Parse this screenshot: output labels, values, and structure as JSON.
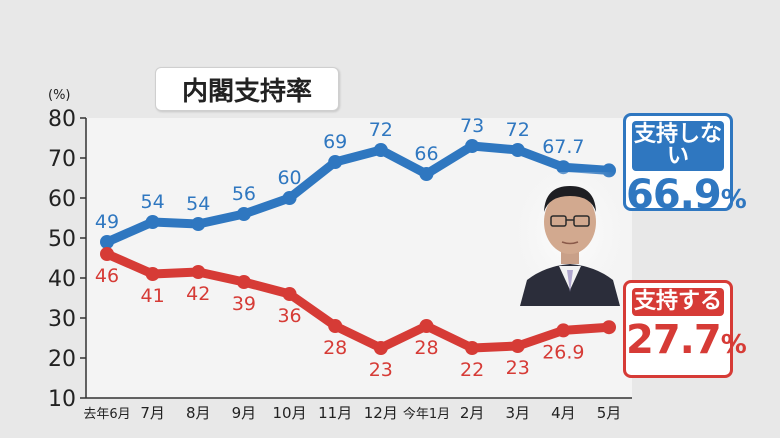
{
  "title": "内閣支持率",
  "unit_label": "(%)",
  "callouts": {
    "disapprove": {
      "label": "支持しない",
      "value": "66.9",
      "unit": "%"
    },
    "approve": {
      "label": "支持する",
      "value": "27.7",
      "unit": "%"
    }
  },
  "colors": {
    "disapprove": "#2f77c0",
    "approve": "#d63b36"
  },
  "chart_data": {
    "type": "line",
    "title": "内閣支持率",
    "xlabel": "",
    "ylabel": "(%)",
    "ylim": [
      10,
      80
    ],
    "yticks": [
      10,
      20,
      30,
      40,
      50,
      60,
      70,
      80
    ],
    "grid": false,
    "categories": [
      "去年6月",
      "7月",
      "8月",
      "9月",
      "10月",
      "11月",
      "12月",
      "今年1月",
      "2月",
      "3月",
      "4月",
      "5月"
    ],
    "series": [
      {
        "name": "支持しない",
        "values": [
          49,
          54,
          53.5,
          56,
          60,
          69,
          72,
          66,
          73,
          72,
          67.7,
          66.9
        ],
        "labels": [
          "49",
          "54",
          "54",
          "56",
          "60",
          "69",
          "72",
          "66",
          "73",
          "72",
          "67.7",
          ""
        ]
      },
      {
        "name": "支持する",
        "values": [
          46,
          41,
          41.5,
          39,
          36,
          28,
          22.5,
          28,
          22.5,
          23,
          26.9,
          27.7
        ],
        "labels": [
          "46",
          "41",
          "42",
          "39",
          "36",
          "28",
          "23",
          "28",
          "22",
          "23",
          "26.9",
          ""
        ]
      }
    ]
  }
}
